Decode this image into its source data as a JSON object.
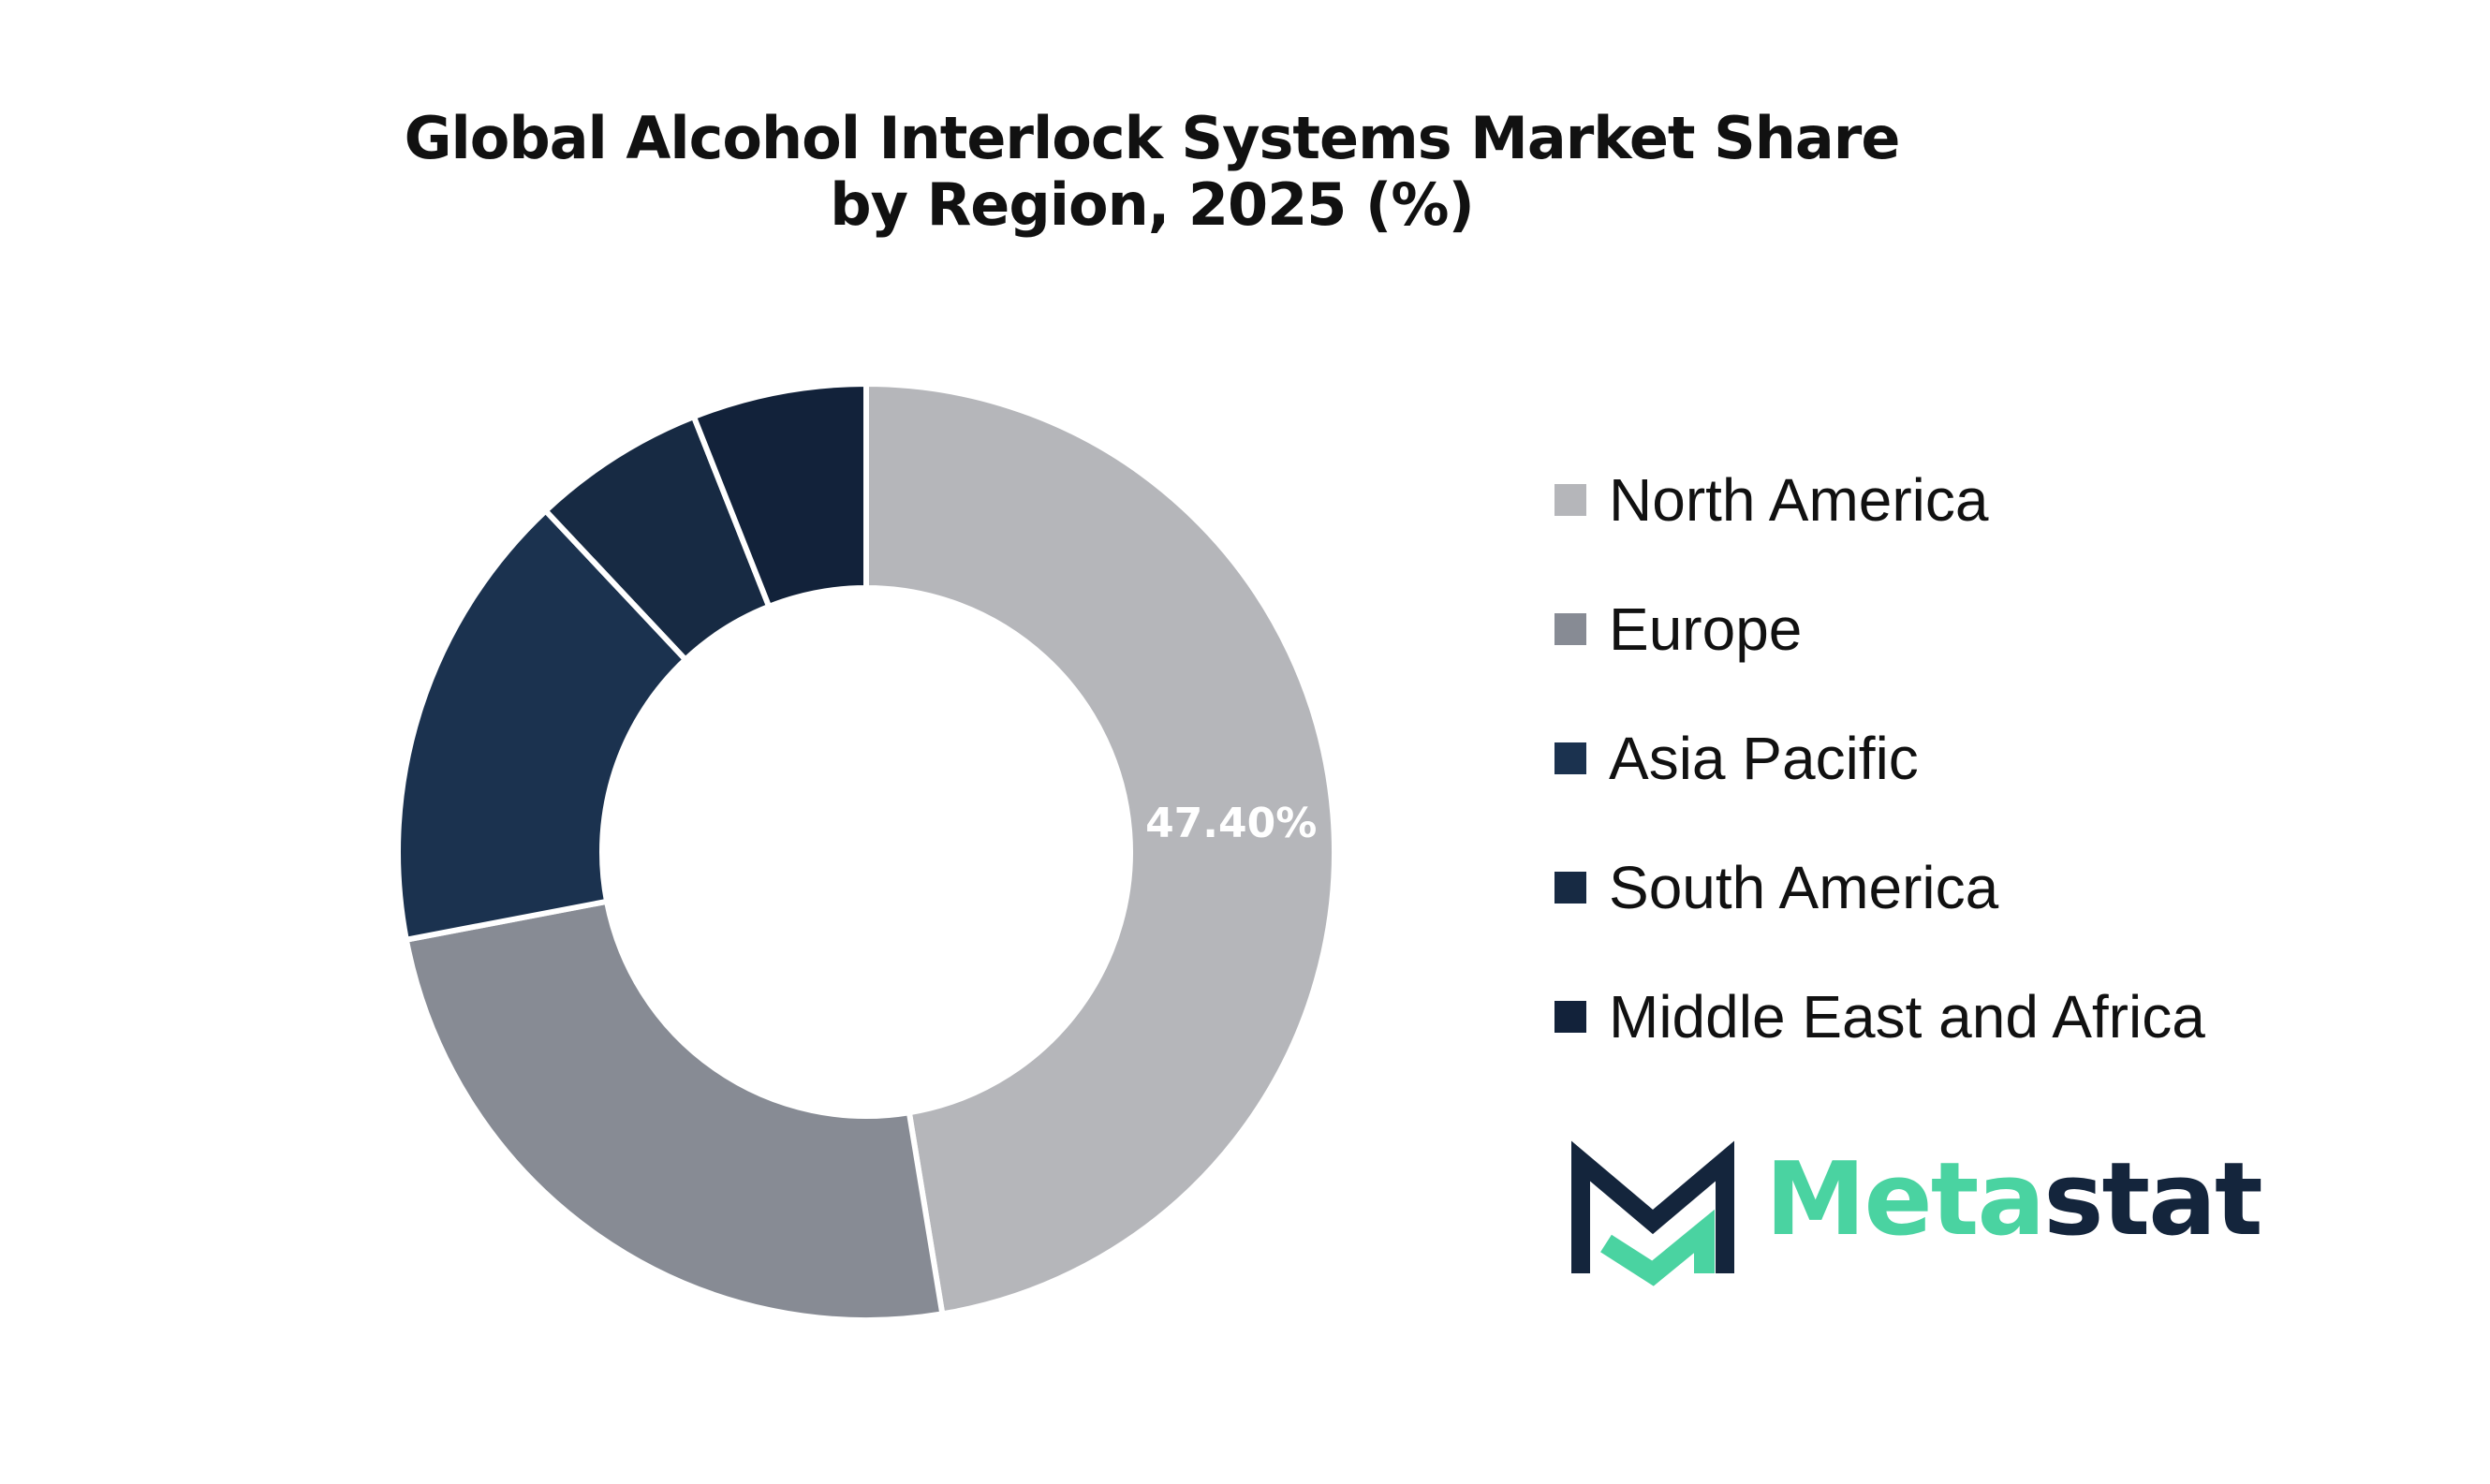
{
  "chart_data": {
    "type": "donut",
    "title": "Global Alcohol Interlock Systems Market Share by Region, 2025 (%)",
    "categories": [
      "North America",
      "Europe",
      "Asia Pacific",
      "South America",
      "Middle East and Africa"
    ],
    "values": [
      47.4,
      24.6,
      16.0,
      6.0,
      6.0
    ],
    "data_labels": [
      "47.40%",
      "",
      "",
      "",
      ""
    ],
    "colors": [
      "#b5b6ba",
      "#878b94",
      "#1b324f",
      "#172a43",
      "#12223a"
    ],
    "legend": {
      "placement": "right"
    }
  },
  "logo": {
    "text_part1": "Meta",
    "text_part2": "stat",
    "color_primary": "#4ad3a1",
    "color_secondary": "#14253c"
  }
}
